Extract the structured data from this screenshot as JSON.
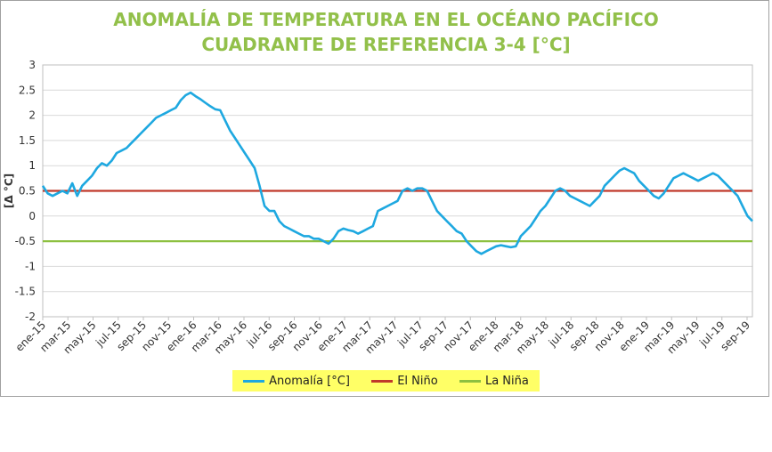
{
  "chart_data": {
    "type": "line",
    "title": "ANOMALÍA DE TEMPERATURA EN EL OCÉANO PACÍFICO",
    "subtitle": "CUADRANTE DE REFERENCIA 3-4 [°C]",
    "ylabel": "[Δ °C]",
    "xlabel": "",
    "ylim": [
      -2,
      3
    ],
    "yticks": [
      "3",
      "2.5",
      "2",
      "1.5",
      "1",
      "0.5",
      "0",
      "-0.5",
      "-1",
      "-1.5",
      "-2"
    ],
    "xtick_labels": [
      "ene-15",
      "mar-15",
      "may-15",
      "jul-15",
      "sep-15",
      "nov-15",
      "ene-16",
      "mar-16",
      "may-16",
      "jul-16",
      "sep-16",
      "nov-16",
      "ene-17",
      "mar-17",
      "may-17",
      "jul-17",
      "sep-17",
      "nov-17",
      "ene-18",
      "mar-18",
      "may-18",
      "jul-18",
      "sep-18",
      "nov-18",
      "ene-19",
      "mar-19",
      "may-19",
      "jul-19",
      "sep-19"
    ],
    "grid": true,
    "legend_position": "bottom",
    "series": [
      {
        "name": "Anomalía [°C]",
        "color": "#1ea8e0",
        "values": [
          0.6,
          0.45,
          0.4,
          0.45,
          0.5,
          0.45,
          0.65,
          0.4,
          0.6,
          0.7,
          0.8,
          0.95,
          1.05,
          1.0,
          1.1,
          1.25,
          1.3,
          1.35,
          1.45,
          1.55,
          1.65,
          1.75,
          1.85,
          1.95,
          2.0,
          2.05,
          2.1,
          2.15,
          2.3,
          2.4,
          2.45,
          2.38,
          2.32,
          2.25,
          2.18,
          2.12,
          2.1,
          1.9,
          1.7,
          1.55,
          1.4,
          1.25,
          1.1,
          0.95,
          0.6,
          0.2,
          0.1,
          0.1,
          -0.1,
          -0.2,
          -0.25,
          -0.3,
          -0.35,
          -0.4,
          -0.4,
          -0.45,
          -0.45,
          -0.5,
          -0.55,
          -0.45,
          -0.3,
          -0.25,
          -0.28,
          -0.3,
          -0.35,
          -0.3,
          -0.25,
          -0.2,
          0.1,
          0.15,
          0.2,
          0.25,
          0.3,
          0.5,
          0.55,
          0.5,
          0.55,
          0.55,
          0.5,
          0.3,
          0.1,
          0.0,
          -0.1,
          -0.2,
          -0.3,
          -0.35,
          -0.5,
          -0.6,
          -0.7,
          -0.75,
          -0.7,
          -0.65,
          -0.6,
          -0.58,
          -0.6,
          -0.62,
          -0.6,
          -0.4,
          -0.3,
          -0.2,
          -0.05,
          0.1,
          0.2,
          0.35,
          0.5,
          0.55,
          0.5,
          0.4,
          0.35,
          0.3,
          0.25,
          0.2,
          0.3,
          0.4,
          0.6,
          0.7,
          0.8,
          0.9,
          0.95,
          0.9,
          0.85,
          0.7,
          0.6,
          0.5,
          0.4,
          0.35,
          0.45,
          0.6,
          0.75,
          0.8,
          0.85,
          0.8,
          0.75,
          0.7,
          0.75,
          0.8,
          0.85,
          0.8,
          0.7,
          0.6,
          0.5,
          0.4,
          0.2,
          0.0,
          -0.1
        ]
      },
      {
        "name": "El Niño",
        "color": "#c0392b",
        "constant": 0.5
      },
      {
        "name": "La Niña",
        "color": "#8dc040",
        "constant": -0.5
      }
    ]
  }
}
